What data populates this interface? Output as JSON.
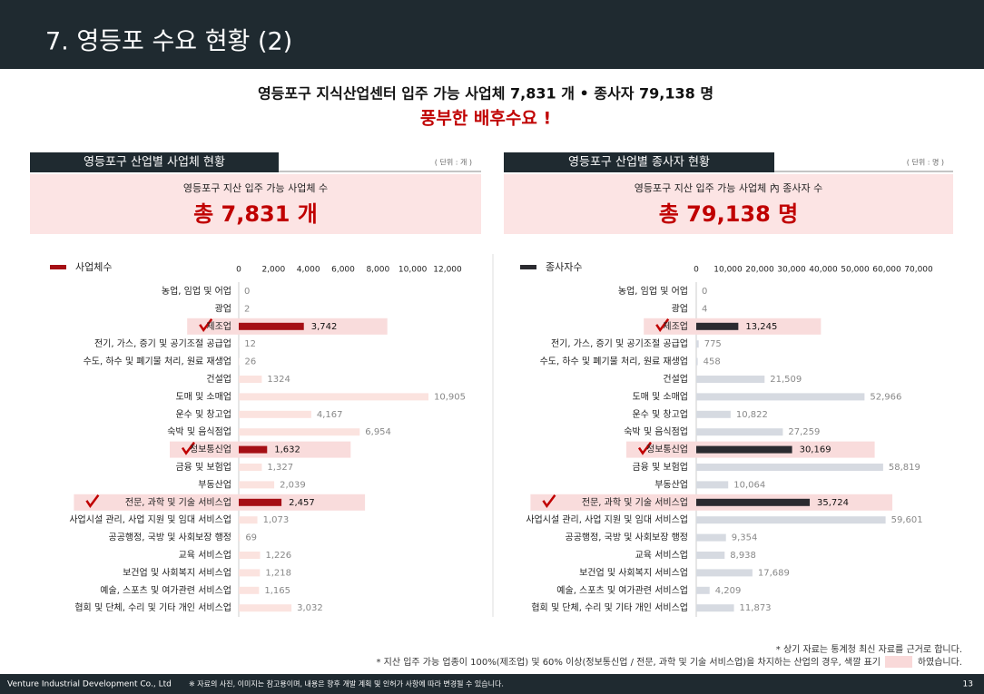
{
  "header": {
    "title": "7. 영등포 수요 현황 (2)"
  },
  "headline": "영등포구 지식산업센터 입주 가능 사업체 7,831 개  •  종사자 79,138 명",
  "subheadline": "풍부한 배후수요 !",
  "chart_data": [
    {
      "type": "bar",
      "orientation": "horizontal",
      "title": "영등포구 산업별 사업체 현황",
      "unit": "( 단위 : 개 )",
      "summary_label": "영등포구 지산 입주 가능 사업체 수",
      "summary_value": "총 7,831 개",
      "categories": [
        "농업, 임업 및 어업",
        "광업",
        "제조업",
        "전기, 가스, 증기 및 공기조절 공급업",
        "수도, 하수 및 폐기물 처리, 원료 재생업",
        "건설업",
        "도매 및 소매업",
        "운수 및 창고업",
        "숙박 및 음식점업",
        "정보통신업",
        "금융 및 보험업",
        "부동산업",
        "전문, 과학 및 기술 서비스업",
        "사업시설 관리, 사업 지원 및 임대 서비스업",
        "공공행정, 국방 및 사회보장 행정",
        "교육 서비스업",
        "보건업 및 사회복지 서비스업",
        "예술, 스포츠 및 여가관련 서비스업",
        "협회 및 단체, 수리 및 기타 개인 서비스업"
      ],
      "series": [
        {
          "name": "사업체수",
          "color": "#a50f15",
          "bar_colors": [
            "#fbe3df",
            "#fbe3df",
            "#a50f15",
            "#fbe3df",
            "#fbe3df",
            "#fbe3df",
            "#fbe3df",
            "#fbe3df",
            "#fbe3df",
            "#a50f15",
            "#fbe3df",
            "#fbe3df",
            "#a50f15",
            "#fbe3df",
            "#fbe3df",
            "#fbe3df",
            "#fbe3df",
            "#fbe3df",
            "#fbe3df"
          ],
          "values": [
            0,
            2,
            3742,
            12,
            26,
            1324,
            10905,
            4167,
            6954,
            1632,
            1327,
            2039,
            2457,
            1073,
            69,
            1226,
            1218,
            1165,
            3032
          ],
          "value_labels": [
            "0",
            "2",
            "3,742",
            "12",
            "26",
            "1324",
            "10,905",
            "4,167",
            "6,954",
            "1,632",
            "1,327",
            "2,039",
            "2,457",
            "1,073",
            "69",
            "1,226",
            "1,218",
            "1,165",
            "3,032"
          ]
        }
      ],
      "xlim": [
        0,
        12000
      ],
      "xticks": [
        0,
        {
          "value": 2000,
          "label": "2,000"
        },
        {
          "value": 4000,
          "label": "4,000"
        },
        {
          "value": 6000,
          "label": "6,000"
        },
        {
          "value": 8000,
          "label": "8,000"
        },
        {
          "value": 10000,
          "label": "10,000"
        },
        {
          "value": 12000,
          "label": "12,000"
        }
      ]
    },
    {
      "type": "bar",
      "orientation": "horizontal",
      "title": "영등포구 산업별 종사자 현황",
      "unit": "( 단위 : 명 )",
      "summary_label": "영등포구 지산 입주 가능 사업체 內 종사자 수",
      "summary_value": "총 79,138 명",
      "categories": [
        "농업, 임업 및 어업",
        "광업",
        "제조업",
        "전기, 가스, 증기 및 공기조절 공급업",
        "수도, 하수 및 폐기물 처리, 원료 재생업",
        "건설업",
        "도매 및 소매업",
        "운수 및 창고업",
        "숙박 및 음식점업",
        "정보통신업",
        "금융 및 보험업",
        "부동산업",
        "전문, 과학 및 기술 서비스업",
        "사업시설 관리, 사업 지원 및 임대 서비스업",
        "공공행정, 국방 및 사회보장 행정",
        "교육 서비스업",
        "보건업 및 사회복지 서비스업",
        "예술, 스포츠 및 여가관련 서비스업",
        "협회 및 단체, 수리 및 기타 개인 서비스업"
      ],
      "series": [
        {
          "name": "종사자수",
          "color": "#2b2b30",
          "bar_colors": [
            "#d6dae1",
            "#d6dae1",
            "#2b2b30",
            "#d6dae1",
            "#d6dae1",
            "#d6dae1",
            "#d6dae1",
            "#d6dae1",
            "#d6dae1",
            "#2b2b30",
            "#d6dae1",
            "#d6dae1",
            "#2b2b30",
            "#d6dae1",
            "#d6dae1",
            "#d6dae1",
            "#d6dae1",
            "#d6dae1",
            "#d6dae1"
          ],
          "values": [
            0,
            4,
            13245,
            775,
            458,
            21509,
            52966,
            10822,
            27259,
            30169,
            58819,
            10064,
            35724,
            59601,
            9354,
            8938,
            17689,
            4209,
            11873
          ],
          "value_labels": [
            "0",
            "4",
            "13,245",
            "775",
            "458",
            "21,509",
            "52,966",
            "10,822",
            "27,259",
            "30,169",
            "58,819",
            "10,064",
            "35,724",
            "59,601",
            "9,354",
            "8,938",
            "17,689",
            "4,209",
            "11,873"
          ]
        }
      ],
      "xlim": [
        0,
        70000
      ],
      "xticks": [
        0,
        {
          "value": 10000,
          "label": "10,000"
        },
        {
          "value": 20000,
          "label": "20,000"
        },
        {
          "value": 30000,
          "label": "30,000"
        },
        {
          "value": 40000,
          "label": "40,000"
        },
        {
          "value": 50000,
          "label": "50,000"
        },
        {
          "value": 60000,
          "label": "60,000"
        },
        {
          "value": 70000,
          "label": "70,000"
        }
      ]
    }
  ],
  "notes": [
    "* 상기 자료는 통계청 최신 자료를 근거로 합니다.",
    "* 지산 입주 가능 업종이 100%(제조업) 및 60% 이상(정보통신업 / 전문, 과학 및 기술 서비스업)을 차지하는 산업의 경우, 색깔 표기",
    "하였습니다."
  ],
  "footer": {
    "company": "Venture Industrial Development Co., Ltd",
    "disclaimer": "※ 자료의 사진, 이미지는 참고용이며, 내용은 향후 개발 계획 및 인허가 사항에 따라 변경될 수 있습니다.",
    "page": "13"
  }
}
